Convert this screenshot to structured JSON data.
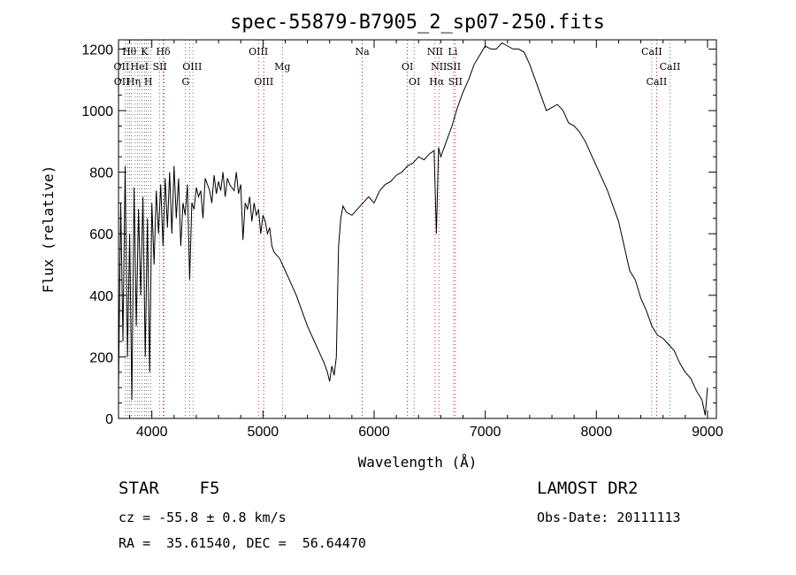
{
  "chart_data": {
    "type": "line",
    "title": "spec-55879-B7905_2_sp07-250.fits",
    "xlabel": "Wavelength (Å)",
    "ylabel": "Flux (relative)",
    "xlim": [
      3700,
      9080
    ],
    "ylim": [
      0,
      1230
    ],
    "xticks": [
      4000,
      5000,
      6000,
      7000,
      8000,
      9000
    ],
    "yticks": [
      0,
      200,
      400,
      600,
      800,
      1000,
      1200
    ],
    "grid": false,
    "series": [
      {
        "x": [
          3700,
          3720,
          3740,
          3760,
          3780,
          3800,
          3820,
          3840,
          3860,
          3880,
          3900,
          3920,
          3940,
          3960,
          3980,
          4000,
          4020,
          4040,
          4060,
          4080,
          4100,
          4120,
          4140,
          4160,
          4180,
          4200,
          4220,
          4240,
          4260,
          4280,
          4300,
          4320,
          4340,
          4360,
          4380,
          4400,
          4420,
          4440,
          4460,
          4480,
          4500,
          4520,
          4540,
          4560,
          4580,
          4600,
          4620,
          4640,
          4660,
          4680,
          4700,
          4720,
          4740,
          4760,
          4780,
          4800,
          4820,
          4840,
          4860,
          4880,
          4900,
          4920,
          4940,
          4960,
          4980,
          5000,
          5020,
          5040,
          5060,
          5080,
          5100,
          5150,
          5200,
          5250,
          5300,
          5350,
          5400,
          5450,
          5500,
          5550,
          5580,
          5600,
          5620,
          5640,
          5660,
          5680,
          5700,
          5720,
          5750,
          5800,
          5850,
          5900,
          5950,
          6000,
          6050,
          6100,
          6150,
          6200,
          6250,
          6300,
          6350,
          6400,
          6450,
          6500,
          6540,
          6560,
          6580,
          6600,
          6650,
          6700,
          6750,
          6800,
          6850,
          6900,
          6950,
          7000,
          7050,
          7100,
          7150,
          7200,
          7250,
          7300,
          7350,
          7400,
          7450,
          7500,
          7550,
          7600,
          7650,
          7700,
          7750,
          7800,
          7850,
          7900,
          7950,
          8000,
          8050,
          8100,
          8150,
          8200,
          8250,
          8300,
          8350,
          8400,
          8450,
          8500,
          8550,
          8600,
          8650,
          8700,
          8750,
          8800,
          8850,
          8900,
          8950,
          8980,
          9000
        ],
        "y": [
          100,
          700,
          250,
          820,
          200,
          600,
          60,
          750,
          300,
          680,
          400,
          720,
          200,
          650,
          150,
          700,
          500,
          740,
          600,
          760,
          560,
          780,
          620,
          800,
          600,
          820,
          650,
          780,
          560,
          700,
          660,
          760,
          450,
          700,
          680,
          750,
          720,
          740,
          650,
          780,
          760,
          740,
          700,
          790,
          730,
          770,
          740,
          800,
          720,
          780,
          760,
          750,
          740,
          800,
          730,
          760,
          580,
          700,
          680,
          720,
          640,
          700,
          660,
          680,
          600,
          660,
          640,
          600,
          620,
          560,
          540,
          520,
          480,
          440,
          400,
          350,
          300,
          260,
          220,
          180,
          150,
          120,
          170,
          140,
          200,
          560,
          650,
          690,
          670,
          660,
          680,
          700,
          720,
          700,
          740,
          760,
          770,
          790,
          800,
          820,
          830,
          850,
          840,
          860,
          870,
          600,
          880,
          850,
          900,
          950,
          1010,
          1060,
          1100,
          1150,
          1180,
          1210,
          1200,
          1200,
          1220,
          1210,
          1200,
          1200,
          1190,
          1150,
          1100,
          1050,
          1000,
          1010,
          1020,
          1000,
          960,
          950,
          930,
          900,
          860,
          820,
          780,
          740,
          690,
          640,
          560,
          480,
          450,
          390,
          350,
          300,
          270,
          260,
          240,
          220,
          180,
          150,
          130,
          90,
          60,
          10,
          100
        ]
      }
    ],
    "line_ids_top": [
      {
        "label": "Hθ",
        "x": 3797
      },
      {
        "label": "K",
        "x": 3934
      },
      {
        "label": "Hδ",
        "x": 4102
      },
      {
        "label": "OIII",
        "x": 4959
      },
      {
        "label": "Na",
        "x": 5893
      },
      {
        "label": "NII",
        "x": 6548
      },
      {
        "label": "Li",
        "x": 6708
      },
      {
        "label": "CaII",
        "x": 8498
      }
    ],
    "line_ids_mid": [
      {
        "label": "OII",
        "x": 3727
      },
      {
        "label": "HeI",
        "x": 3889
      },
      {
        "label": "SII",
        "x": 4072
      },
      {
        "label": "OIII",
        "x": 4363
      },
      {
        "label": "Mg",
        "x": 5175
      },
      {
        "label": "OI",
        "x": 6300
      },
      {
        "label": "NII",
        "x": 6583
      },
      {
        "label": "SII",
        "x": 6716
      },
      {
        "label": "CaII",
        "x": 8662
      }
    ],
    "line_ids_low": [
      {
        "label": "OII",
        "x": 3729
      },
      {
        "label": "Hη",
        "x": 3835
      },
      {
        "label": "H",
        "x": 3968
      },
      {
        "label": "G",
        "x": 4304
      },
      {
        "label": "OIII",
        "x": 5007
      },
      {
        "label": "OI",
        "x": 6364
      },
      {
        "label": "Hα",
        "x": 6563
      },
      {
        "label": "SII",
        "x": 6731
      },
      {
        "label": "CaII",
        "x": 8542
      }
    ],
    "line_markers": {
      "black": [
        3760,
        3785,
        3800,
        3815,
        3850,
        3870,
        3890,
        3910,
        3935,
        3950,
        3970,
        3990,
        4070,
        4110,
        4300,
        4340,
        4370,
        5007,
        5175,
        5893,
        6300,
        6360,
        8498,
        8542,
        8662
      ],
      "red": [
        4102,
        4959,
        5007,
        5893,
        6300,
        6548,
        6583,
        6716,
        6731,
        8542
      ]
    }
  },
  "info": {
    "class_type": "STAR",
    "subclass": "F5",
    "survey": "LAMOST DR2",
    "cz": "cz = -55.8 ± 0.8 km/s",
    "obs_date": "Obs-Date: 20111113",
    "radec": "RA =  35.61540, DEC =  56.64470"
  }
}
